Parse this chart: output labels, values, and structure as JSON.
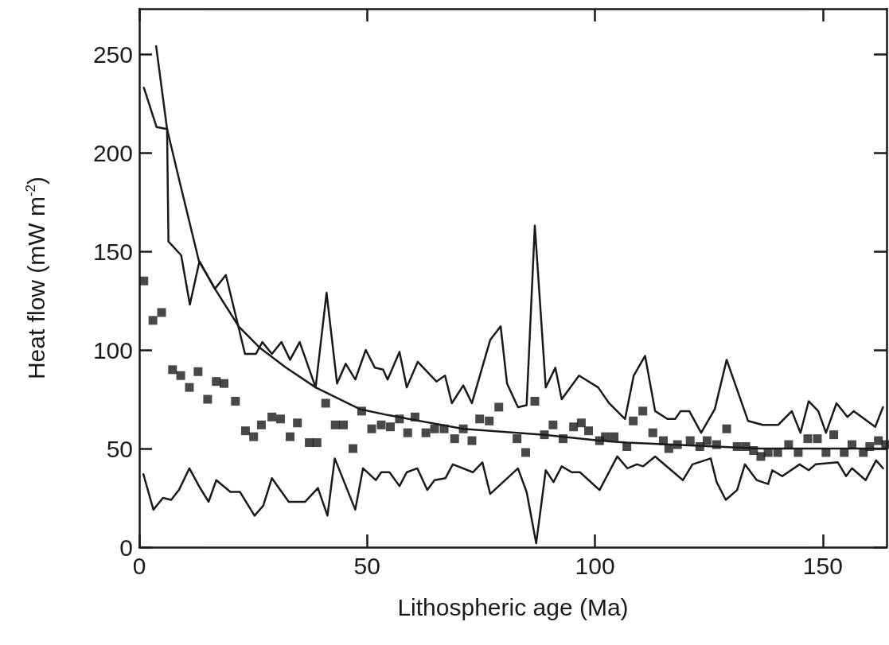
{
  "chart_data": {
    "type": "line",
    "xlabel": "Lithospheric age (Ma)",
    "ylabel": "Heat flow (mW m$^{-2}$)",
    "xlim": [
      0,
      164
    ],
    "ylim": [
      0,
      273
    ],
    "xticks": [
      0,
      50,
      100,
      150
    ],
    "yticks": [
      0,
      50,
      100,
      150,
      200,
      250
    ],
    "series": [
      {
        "marker": "none",
        "line_style": "solid",
        "color": "#1a1a1a",
        "x": [
          1.0,
          3.8,
          6.1,
          6.4,
          9.2,
          11.1,
          13.2,
          16.6,
          19.0,
          23.2,
          25.6,
          27.0,
          29.1,
          31.2,
          33.1,
          35.2,
          38.7,
          41.1,
          43.4,
          45.3,
          47.4,
          49.7,
          51.7,
          53.5,
          54.5,
          57.1,
          58.7,
          61.1,
          65.2,
          67.1,
          68.6,
          71.1,
          73.0,
          77.0,
          79.3,
          80.7,
          83.1,
          85.0,
          86.8,
          89.2,
          91.3,
          92.7,
          96.5,
          100.7,
          103.1,
          106.6,
          108.5,
          111.0,
          113.2,
          115.9,
          117.6,
          118.8,
          120.7,
          123.3,
          126.3,
          128.9,
          133.6,
          136.8,
          140.2,
          143.2,
          145.1,
          146.9,
          149.0,
          150.7,
          153.0,
          155.4,
          156.8,
          161.5,
          163.2
        ],
        "values": [
          233,
          213,
          212,
          155,
          148,
          123,
          145,
          131,
          138,
          98,
          98,
          104,
          98,
          104,
          95,
          104,
          81,
          129,
          83,
          93,
          85,
          100,
          91,
          90,
          85,
          99,
          81,
          94,
          84,
          87,
          73,
          82,
          73,
          105,
          112,
          83,
          71,
          72,
          163,
          81,
          91,
          75,
          87,
          81,
          73,
          65,
          87,
          97,
          69,
          65,
          65,
          69,
          69,
          58,
          70,
          95,
          64,
          62,
          62,
          69,
          58,
          74,
          69,
          58,
          73,
          66,
          69,
          61,
          71
        ]
      },
      {
        "marker": "none",
        "line_style": "solid",
        "color": "#1a1a1a",
        "x": [
          0.9,
          3.1,
          5.2,
          7.0,
          8.7,
          11.0,
          13.1,
          15.2,
          16.9,
          20.0,
          22.1,
          25.3,
          27.2,
          29.1,
          32.8,
          36.4,
          39.2,
          41.3,
          42.9,
          47.4,
          49.1,
          51.9,
          53.1,
          54.9,
          57.1,
          58.7,
          61.0,
          63.2,
          64.8,
          67.2,
          68.8,
          73.2,
          75.3,
          77.0,
          83.1,
          85.0,
          87.1,
          89.2,
          90.9,
          92.7,
          94.9,
          96.7,
          101.0,
          104.9,
          107.1,
          109.2,
          110.6,
          113.2,
          119.3,
          121.4,
          125.4,
          126.7,
          128.7,
          131.2,
          132.9,
          135.5,
          138.0,
          138.9,
          141.1,
          144.9,
          146.9,
          148.4,
          153.3,
          155.1,
          156.4,
          159.4,
          161.7,
          163.2
        ],
        "values": [
          37,
          19,
          25,
          24,
          29,
          40,
          31,
          23,
          34,
          28,
          28,
          16,
          21,
          35,
          23,
          23,
          30,
          16,
          45,
          19,
          40,
          34,
          38,
          38,
          31,
          38,
          40,
          29,
          34,
          35,
          42,
          38,
          43,
          27,
          40,
          28,
          2,
          39,
          33,
          41,
          38,
          38,
          29,
          46,
          40,
          42,
          41,
          46,
          34,
          42,
          45,
          33,
          24,
          29,
          42,
          34,
          32,
          39,
          36,
          42,
          39,
          42,
          43,
          36,
          40,
          34,
          44,
          40
        ]
      },
      {
        "type": "scatter",
        "marker": "square",
        "color": "#1a1a1a",
        "x": [
          1.0,
          3.0,
          4.9,
          7.3,
          9.1,
          11.0,
          12.9,
          15.0,
          16.9,
          18.6,
          21.1,
          23.3,
          25.1,
          26.8,
          29.1,
          31.0,
          33.1,
          34.7,
          37.3,
          39.0,
          40.9,
          43.0,
          44.8,
          46.9,
          48.8,
          51.0,
          53.1,
          55.1,
          57.1,
          58.9,
          60.5,
          62.9,
          64.8,
          66.9,
          69.2,
          71.1,
          73.0,
          74.7,
          76.8,
          78.9,
          82.9,
          84.8,
          86.8,
          88.9,
          90.8,
          93.0,
          95.3,
          97.0,
          98.6,
          101.0,
          102.3,
          104.2,
          107.0,
          108.4,
          110.5,
          112.7,
          115.0,
          116.2,
          118.1,
          120.9,
          123.0,
          124.6,
          126.7,
          128.9,
          131.2,
          133.1,
          134.8,
          136.4,
          138.0,
          140.1,
          142.5,
          144.6,
          146.7,
          148.8,
          150.7,
          152.4,
          154.7,
          156.4,
          158.9,
          160.3,
          162.2,
          163.8
        ],
        "values": [
          135,
          115,
          119,
          90,
          87,
          81,
          89,
          75,
          84,
          83,
          74,
          59,
          56,
          62,
          66,
          65,
          56,
          63,
          53,
          53,
          73,
          62,
          62,
          50,
          69,
          60,
          62,
          61,
          65,
          58,
          66,
          58,
          60,
          60,
          55,
          60,
          54,
          65,
          64,
          71,
          55,
          48,
          74,
          57,
          62,
          55,
          61,
          63,
          59,
          54,
          56,
          56,
          51,
          64,
          69,
          58,
          54,
          50,
          52,
          54,
          51,
          54,
          52,
          60,
          51,
          51,
          49,
          46,
          48,
          48,
          52,
          48,
          55,
          55,
          48,
          57,
          48,
          52,
          48,
          51,
          54,
          52
        ]
      },
      {
        "marker": "none",
        "line_style": "solid",
        "color": "#1a1a1a",
        "x": [
          3.7,
          6.1,
          9.1,
          13.1,
          16.6,
          21.8,
          26.5,
          32.2,
          38.7,
          48.4,
          54.5,
          71.1,
          88.9,
          101.0,
          107.1,
          136.2,
          164.0
        ],
        "values": [
          254,
          212,
          183,
          145,
          131,
          112,
          101,
          91,
          81,
          70,
          67,
          60,
          57,
          54,
          53,
          50,
          50
        ]
      }
    ]
  }
}
